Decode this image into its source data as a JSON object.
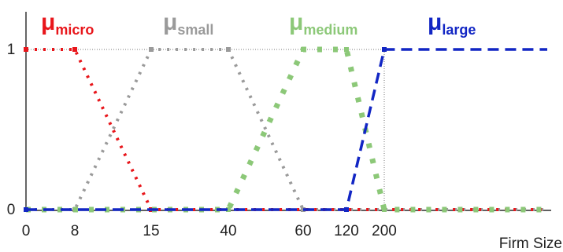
{
  "chart_data": {
    "type": "line",
    "title": "",
    "xlabel": "Firm Size",
    "ylabel": "",
    "xlim": [
      0,
      8
    ],
    "ylim": [
      0,
      1
    ],
    "x_ticks": [
      {
        "pos": 0,
        "label": "0"
      },
      {
        "pos": 1,
        "label": "8"
      },
      {
        "pos": 2,
        "label": "15"
      },
      {
        "pos": 3,
        "label": "40"
      },
      {
        "pos": 4,
        "label": "60"
      },
      {
        "pos": 5,
        "label": "120"
      },
      {
        "pos": 6,
        "label": "200"
      }
    ],
    "y_ticks": [
      {
        "pos": 0,
        "label": "0"
      },
      {
        "pos": 1,
        "label": "1"
      }
    ],
    "grid": false,
    "series": [
      {
        "symbol": "μ",
        "subscript": "micro",
        "color": "#e8161b",
        "style": "dotted",
        "points": [
          [
            0,
            1
          ],
          [
            1,
            1
          ],
          [
            2,
            0
          ],
          [
            8,
            0
          ]
        ]
      },
      {
        "symbol": "μ",
        "subscript": "small",
        "color": "#9a9a9a",
        "style": "dotted",
        "points": [
          [
            0,
            0
          ],
          [
            1,
            0
          ],
          [
            2,
            1
          ],
          [
            3,
            1
          ],
          [
            4,
            0
          ],
          [
            8,
            0
          ]
        ]
      },
      {
        "symbol": "μ",
        "subscript": "medium",
        "color": "#8cc878",
        "style": "dotted-bold",
        "points": [
          [
            0,
            0
          ],
          [
            3,
            0
          ],
          [
            4,
            1
          ],
          [
            5,
            1
          ],
          [
            6,
            0
          ],
          [
            8,
            0
          ]
        ]
      },
      {
        "symbol": "μ",
        "subscript": "large",
        "color": "#1226c4",
        "style": "dashed",
        "points": [
          [
            0,
            0
          ],
          [
            5,
            0
          ],
          [
            6,
            1
          ],
          [
            8,
            1
          ]
        ]
      }
    ]
  }
}
